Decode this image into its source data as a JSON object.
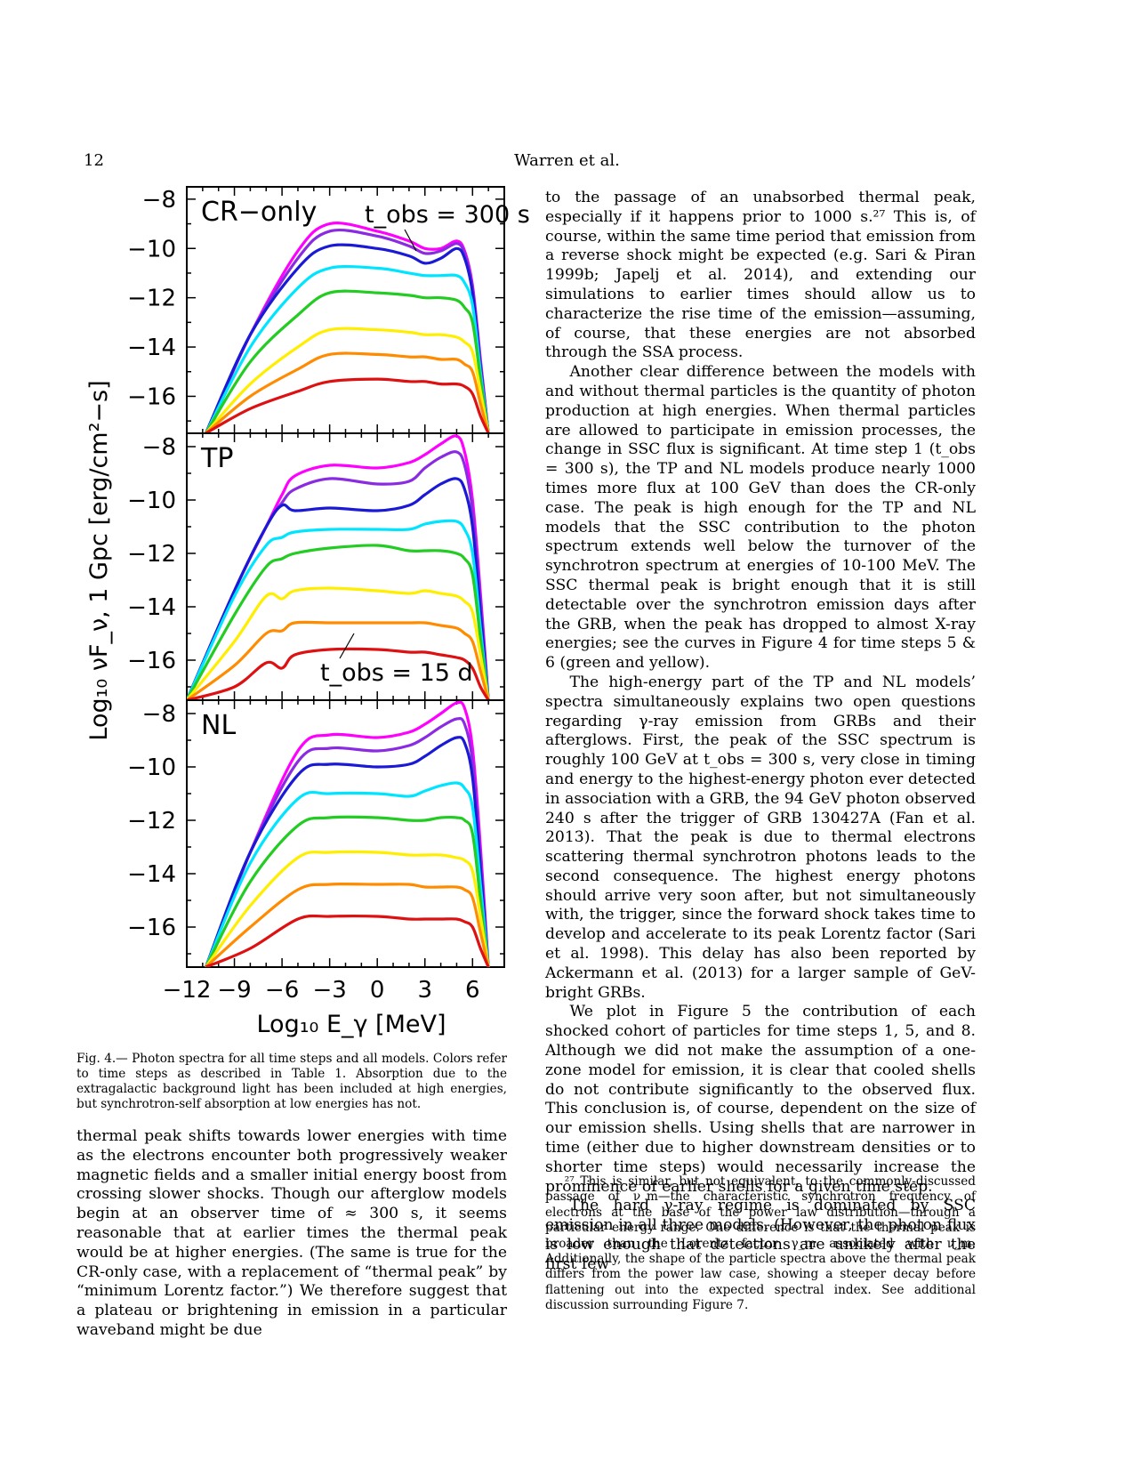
{
  "header": {
    "page_number": "12",
    "running_title": "Warren et al."
  },
  "figure": {
    "ylabel": "Log₁₀ νF_ν, 1 Gpc [erg/cm²−s]",
    "xlabel": "Log₁₀ E_γ [MeV]",
    "panel_labels": [
      "CR−only",
      "TP",
      "NL"
    ],
    "annotation_top": "t_obs = 300 s",
    "annotation_mid": "t_obs = 15 d",
    "caption": "Fig. 4.— Photon spectra for all time steps and all models. Colors refer to time steps as described in Table 1. Absorption due to the extragalactic background light has been included at high energies, but synchrotron-self absorption at low energies has not."
  },
  "chart_data": {
    "type": "line",
    "xlim": [
      -12,
      8
    ],
    "ylim": [
      -17.5,
      -7.5
    ],
    "xticks": [
      -12,
      -9,
      -6,
      -3,
      0,
      3,
      6
    ],
    "yticks": [
      -8,
      -10,
      -12,
      -14,
      -16
    ],
    "series_colors": [
      "#ff00ff",
      "#8a2be2",
      "#1a1ad6",
      "#00e5ff",
      "#22cc22",
      "#ffee00",
      "#ff8c00",
      "#dd1111"
    ],
    "panels": [
      {
        "label": "CR−only",
        "x": [
          -10.8,
          -8,
          -5,
          -3,
          0,
          2,
          3,
          4,
          5,
          5.5,
          6,
          6.5,
          7
        ],
        "series": [
          {
            "values": [
              -17.5,
              -13.5,
              -10.1,
              -9.0,
              -9.3,
              -9.7,
              -10.0,
              -10.0,
              -9.7,
              -10.1,
              -11.5,
              -14.5,
              -17.5
            ]
          },
          {
            "values": [
              -17.5,
              -13.5,
              -10.4,
              -9.3,
              -9.5,
              -9.9,
              -10.2,
              -10.1,
              -9.8,
              -10.2,
              -11.6,
              -14.6,
              -17.5
            ]
          },
          {
            "values": [
              -17.5,
              -13.5,
              -10.8,
              -9.9,
              -10.0,
              -10.3,
              -10.6,
              -10.4,
              -10.0,
              -10.4,
              -11.8,
              -14.8,
              -17.5
            ]
          },
          {
            "values": [
              -17.5,
              -14.0,
              -11.6,
              -10.8,
              -10.8,
              -11.0,
              -11.1,
              -11.1,
              -11.1,
              -11.4,
              -12.3,
              -15.0,
              -17.5
            ]
          },
          {
            "values": [
              -17.5,
              -14.6,
              -12.7,
              -11.8,
              -11.8,
              -11.9,
              -12.0,
              -12.0,
              -12.1,
              -12.4,
              -13.0,
              -15.3,
              -17.5
            ]
          },
          {
            "values": [
              -17.5,
              -15.5,
              -14.0,
              -13.3,
              -13.3,
              -13.4,
              -13.5,
              -13.5,
              -13.6,
              -13.8,
              -14.2,
              -15.8,
              -17.5
            ]
          },
          {
            "values": [
              -17.5,
              -16.0,
              -14.9,
              -14.3,
              -14.3,
              -14.4,
              -14.4,
              -14.5,
              -14.5,
              -14.7,
              -15.0,
              -16.3,
              -17.5
            ]
          },
          {
            "values": [
              -17.5,
              -16.5,
              -15.8,
              -15.4,
              -15.3,
              -15.4,
              -15.4,
              -15.5,
              -15.5,
              -15.6,
              -15.9,
              -16.8,
              -17.5
            ]
          }
        ]
      },
      {
        "label": "TP",
        "x": [
          -12,
          -9,
          -7,
          -6,
          -5.2,
          -3,
          0,
          2,
          3,
          4,
          5,
          5.5,
          6,
          6.5,
          7
        ],
        "series": [
          {
            "values": [
              -17.5,
              -13.4,
              -11.0,
              -9.8,
              -9.1,
              -8.7,
              -8.8,
              -8.6,
              -8.3,
              -7.9,
              -7.6,
              -8.2,
              -10.0,
              -13.5,
              -17.5
            ]
          },
          {
            "values": [
              -17.5,
              -13.4,
              -11.0,
              -10.1,
              -9.6,
              -9.2,
              -9.4,
              -9.3,
              -8.8,
              -8.4,
              -8.2,
              -8.7,
              -10.4,
              -13.8,
              -17.5
            ]
          },
          {
            "values": [
              -17.5,
              -13.4,
              -11.0,
              -10.2,
              -10.4,
              -10.3,
              -10.4,
              -10.2,
              -9.8,
              -9.4,
              -9.2,
              -9.6,
              -11.0,
              -14.2,
              -17.5
            ]
          },
          {
            "values": [
              -17.5,
              -13.6,
              -11.7,
              -11.4,
              -11.2,
              -11.1,
              -11.1,
              -11.1,
              -10.9,
              -10.8,
              -10.8,
              -11.1,
              -12.0,
              -14.8,
              -17.5
            ]
          },
          {
            "values": [
              -17.5,
              -14.3,
              -12.5,
              -12.2,
              -12.0,
              -11.8,
              -11.7,
              -11.9,
              -11.9,
              -11.9,
              -12.0,
              -12.2,
              -12.8,
              -15.2,
              -17.5
            ]
          },
          {
            "values": [
              -17.5,
              -15.3,
              -13.6,
              -13.7,
              -13.4,
              -13.3,
              -13.4,
              -13.5,
              -13.4,
              -13.5,
              -13.6,
              -13.8,
              -14.2,
              -15.8,
              -17.5
            ]
          },
          {
            "values": [
              -17.5,
              -16.2,
              -15.0,
              -14.9,
              -14.6,
              -14.6,
              -14.6,
              -14.6,
              -14.6,
              -14.7,
              -14.8,
              -15.0,
              -15.3,
              -16.4,
              -17.5
            ]
          },
          {
            "values": [
              -17.5,
              -17.0,
              -16.1,
              -16.3,
              -15.8,
              -15.6,
              -15.6,
              -15.7,
              -15.7,
              -15.8,
              -15.9,
              -16.0,
              -16.3,
              -17.0,
              -17.5
            ]
          }
        ]
      },
      {
        "label": "NL",
        "x": [
          -10.8,
          -8,
          -5,
          -3,
          0,
          2,
          3,
          4,
          5,
          5.5,
          6,
          6.5,
          7
        ],
        "series": [
          {
            "values": [
              -17.5,
              -13.2,
              -9.4,
              -8.8,
              -8.9,
              -8.7,
              -8.4,
              -8.0,
              -7.6,
              -7.8,
              -9.3,
              -13.0,
              -17.5
            ]
          },
          {
            "values": [
              -17.5,
              -13.2,
              -9.8,
              -9.3,
              -9.4,
              -9.2,
              -8.9,
              -8.5,
              -8.2,
              -8.4,
              -9.8,
              -13.4,
              -17.5
            ]
          },
          {
            "values": [
              -17.5,
              -13.2,
              -10.3,
              -9.9,
              -10.0,
              -9.9,
              -9.6,
              -9.2,
              -8.9,
              -9.1,
              -10.4,
              -13.8,
              -17.5
            ]
          },
          {
            "values": [
              -17.5,
              -13.6,
              -11.2,
              -11.0,
              -11.0,
              -11.1,
              -10.9,
              -10.7,
              -10.6,
              -10.8,
              -11.5,
              -14.4,
              -17.5
            ]
          },
          {
            "values": [
              -17.5,
              -14.3,
              -12.2,
              -11.9,
              -11.9,
              -12.0,
              -12.0,
              -11.9,
              -11.9,
              -12.0,
              -12.5,
              -15.0,
              -17.5
            ]
          },
          {
            "values": [
              -17.5,
              -15.2,
              -13.4,
              -13.2,
              -13.2,
              -13.3,
              -13.3,
              -13.3,
              -13.4,
              -13.5,
              -13.9,
              -15.6,
              -17.5
            ]
          },
          {
            "values": [
              -17.5,
              -16.0,
              -14.6,
              -14.4,
              -14.4,
              -14.4,
              -14.5,
              -14.5,
              -14.5,
              -14.6,
              -14.9,
              -16.2,
              -17.5
            ]
          },
          {
            "values": [
              -17.5,
              -16.8,
              -15.7,
              -15.6,
              -15.6,
              -15.7,
              -15.7,
              -15.7,
              -15.7,
              -15.8,
              -16.0,
              -16.8,
              -17.5
            ]
          }
        ]
      }
    ]
  },
  "left_column": [
    "thermal peak shifts towards lower energies with time as the electrons encounter both progressively weaker magnetic fields and a smaller initial energy boost from crossing slower shocks. Though our afterglow models begin at an observer time of ≈ 300 s, it seems reasonable that at earlier times the thermal peak would be at higher energies. (The same is true for the CR-only case, with a replacement of “thermal peak” by “minimum Lorentz factor.”) We therefore suggest that a plateau or brightening in emission in a particular waveband might be due"
  ],
  "right_column": [
    "to the passage of an unabsorbed thermal peak, especially if it happens prior to 1000 s.²⁷ This is, of course, within the same time period that emission from a reverse shock might be expected (e.g. Sari & Piran 1999b; Japelj et al. 2014), and extending our simulations to earlier times should allow us to characterize the rise time of the emission—assuming, of course, that these energies are not absorbed through the SSA process.",
    "Another clear difference between the models with and without thermal particles is the quantity of photon production at high energies. When thermal particles are allowed to participate in emission processes, the change in SSC flux is significant. At time step 1 (t_obs = 300 s), the TP and NL models produce nearly 1000 times more flux at 100 GeV than does the CR-only case. The peak is high enough for the TP and NL models that the SSC contribution to the photon spectrum extends well below the turnover of the synchrotron spectrum at energies of 10-100 MeV. The SSC thermal peak is bright enough that it is still detectable over the synchrotron emission days after the GRB, when the peak has dropped to almost X-ray energies; see the curves in Figure 4 for time steps 5 & 6 (green and yellow).",
    "The high-energy part of the TP and NL models’ spectra simultaneously explains two open questions regarding γ-ray emission from GRBs and their afterglows. First, the peak of the SSC spectrum is roughly 100 GeV at t_obs = 300 s, very close in timing and energy to the highest-energy photon ever detected in association with a GRB, the 94 GeV photon observed 240 s after the trigger of GRB 130427A (Fan et al. 2013). That the peak is due to thermal electrons scattering thermal synchrotron photons leads to the second consequence. The highest energy photons should arrive very soon after, but not simultaneously with, the trigger, since the forward shock takes time to develop and accelerate to its peak Lorentz factor (Sari et al. 1998). This delay has also been reported by Ackermann et al. (2013) for a larger sample of GeV-bright GRBs.",
    "We plot in Figure 5 the contribution of each shocked cohort of particles for time steps 1, 5, and 8. Although we did not make the assumption of a one-zone model for emission, it is clear that cooled shells do not contribute significantly to the observed flux. This conclusion is, of course, dependent on the size of our emission shells. Using shells that are narrower in time (either due to higher downstream densities or to shorter time steps) would necessarily increase the prominence of earlier shells for a given time step.",
    "The hard γ-ray regime is dominated by SSC emission in all three models. (However, the photon flux is low enough that detections are unlikely after the first few"
  ],
  "footnote": "²⁷ This is similar, but not equivalent, to the commonly-discussed passage of ν_m—the characteristic synchrotron frequency of electrons at the base of the power law distribution—through a particular energy range. One difference is that the thermal peak is broader than the Lorentz factor γ_m associated with ν_m. Additionally, the shape of the particle spectra above the thermal peak differs from the power law case, showing a steeper decay before flattening out into the expected spectral index. See additional discussion surrounding Figure 7."
}
